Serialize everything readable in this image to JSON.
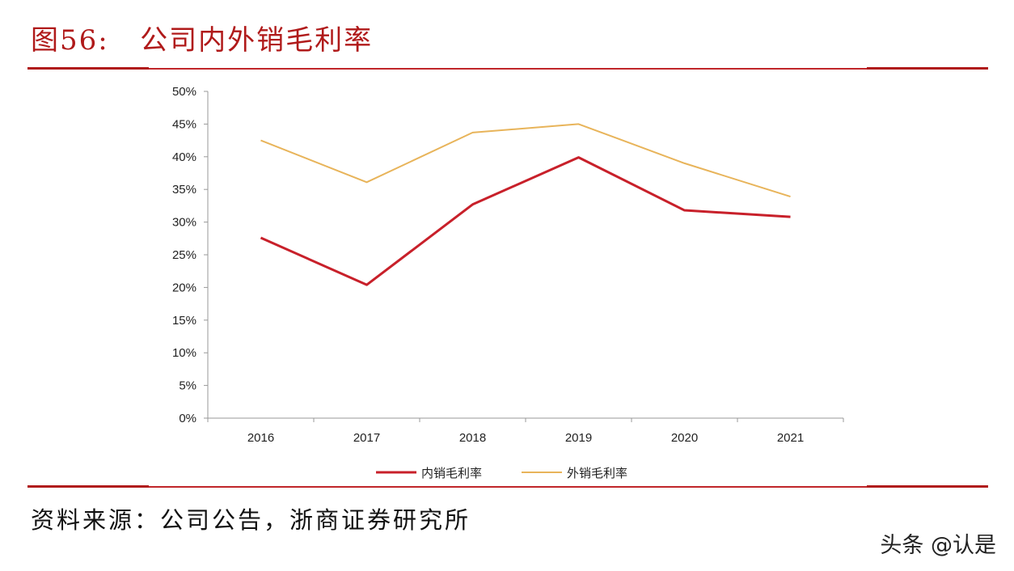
{
  "title": "图56:   公司内外销毛利率",
  "source": "资料来源：公司公告，浙商证券研究所",
  "watermark": "头条 @认是",
  "colors": {
    "accent": "#c0262a",
    "domestic": "#c8202a",
    "export": "#e8b45a"
  },
  "chart_data": {
    "type": "line",
    "title": "",
    "xlabel": "",
    "ylabel": "",
    "categories": [
      "2016",
      "2017",
      "2018",
      "2019",
      "2020",
      "2021"
    ],
    "ylim": [
      0,
      50
    ],
    "yticks": [
      "0%",
      "5%",
      "10%",
      "15%",
      "20%",
      "25%",
      "30%",
      "35%",
      "40%",
      "45%",
      "50%"
    ],
    "grid": false,
    "legend": "bottom",
    "series": [
      {
        "name": "内销毛利率",
        "color": "#c8202a",
        "values": [
          27.6,
          20.4,
          32.7,
          39.9,
          31.8,
          30.8
        ]
      },
      {
        "name": "外销毛利率",
        "color": "#e8b45a",
        "values": [
          42.5,
          36.1,
          43.7,
          45.0,
          39.0,
          33.9
        ]
      }
    ]
  }
}
